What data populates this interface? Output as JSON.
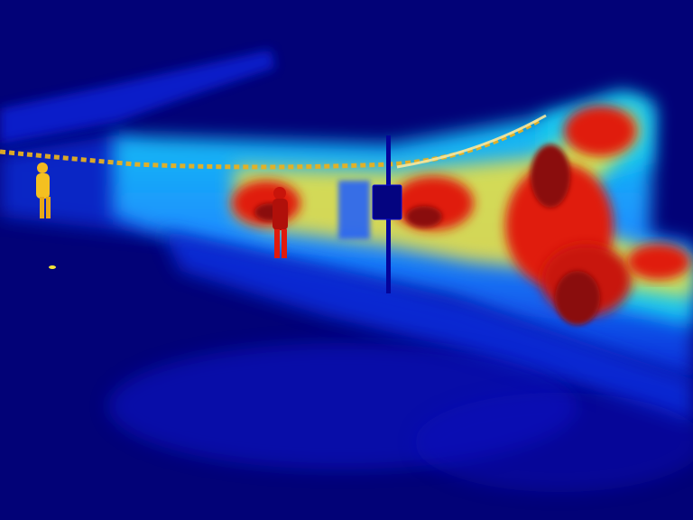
{
  "image": {
    "kind": "thermal-camera-frame",
    "palette": "jet",
    "colors": {
      "background": "#020277",
      "cold": "#0a0ad8",
      "cool": "#1c5cff",
      "mid": "#15c8f0",
      "warm": "#f4e43a",
      "hot": "#e01a0c",
      "hottest": "#8a0a08"
    }
  }
}
